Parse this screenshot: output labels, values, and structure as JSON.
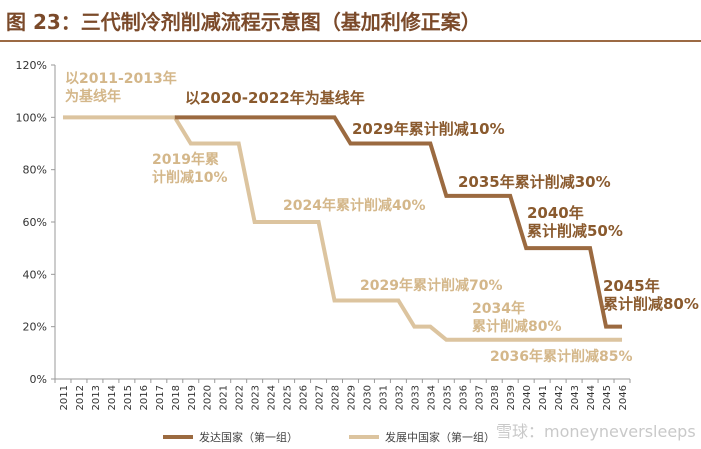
{
  "page": {
    "title": "图 23：三代制冷剂削减流程示意图（基加利修正案）"
  },
  "watermark": "雪球：moneyneversleeps",
  "colors": {
    "developed": "#9b6a40",
    "developing": "#dcc49f",
    "title": "#7b4a2a",
    "axis": "#9a9a9a"
  },
  "chart_data": {
    "type": "line",
    "title": "图 23：三代制冷剂削减流程示意图（基加利修正案）",
    "x": [
      2011,
      2012,
      2013,
      2014,
      2015,
      2016,
      2017,
      2018,
      2019,
      2020,
      2021,
      2022,
      2023,
      2024,
      2025,
      2026,
      2027,
      2028,
      2029,
      2030,
      2031,
      2032,
      2033,
      2034,
      2035,
      2036,
      2037,
      2038,
      2039,
      2040,
      2041,
      2042,
      2043,
      2044,
      2045,
      2046
    ],
    "x_tick_labels": [
      "2011",
      "2012",
      "2013",
      "2014",
      "2015",
      "2016",
      "2017",
      "2018",
      "2019",
      "2020",
      "2021",
      "2022",
      "2023",
      "2024",
      "2025",
      "2026",
      "2027",
      "2028",
      "2029",
      "2030",
      "2031",
      "2032",
      "2033",
      "2034",
      "2035",
      "2036",
      "2037",
      "2038",
      "2039",
      "2040",
      "2041",
      "2042",
      "2043",
      "2044",
      "2045",
      "2046"
    ],
    "y_tick_labels": [
      "0%",
      "20%",
      "40%",
      "60%",
      "80%",
      "100%",
      "120%"
    ],
    "ylim": [
      0,
      120
    ],
    "grid": false,
    "legend_position": "bottom",
    "series": [
      {
        "name": "发展中国家（第一组）",
        "color": "#dcc49f",
        "points": [
          [
            2011,
            100
          ],
          [
            2018,
            100
          ],
          [
            2019,
            90
          ],
          [
            2022,
            90
          ],
          [
            2023,
            60
          ],
          [
            2027,
            60
          ],
          [
            2028,
            30
          ],
          [
            2032,
            30
          ],
          [
            2033,
            20
          ],
          [
            2034,
            20
          ],
          [
            2035,
            15
          ],
          [
            2046,
            15
          ]
        ]
      },
      {
        "name": "发达国家（第一组）",
        "color": "#9b6a40",
        "points": [
          [
            2018,
            100
          ],
          [
            2028,
            100
          ],
          [
            2029,
            90
          ],
          [
            2034,
            90
          ],
          [
            2035,
            70
          ],
          [
            2039,
            70
          ],
          [
            2040,
            50
          ],
          [
            2044,
            50
          ],
          [
            2045,
            20
          ],
          [
            2046,
            20
          ]
        ]
      }
    ],
    "annotations": [
      {
        "series": "developing",
        "lines": [
          "以2011-2013年",
          "为基线年"
        ]
      },
      {
        "series": "developing",
        "lines": [
          "2019年累",
          "计削减10%"
        ]
      },
      {
        "series": "developing",
        "lines": [
          "2024年累计削减40%"
        ]
      },
      {
        "series": "developing",
        "lines": [
          "2029年累计削减70%"
        ]
      },
      {
        "series": "developing",
        "lines": [
          "2034年",
          "累计削减80%"
        ]
      },
      {
        "series": "developing",
        "lines": [
          "2036年累计削减85%"
        ]
      },
      {
        "series": "developed",
        "lines": [
          "以2020-2022年为基线年"
        ]
      },
      {
        "series": "developed",
        "lines": [
          "2029年累计削减10%"
        ]
      },
      {
        "series": "developed",
        "lines": [
          "2035年累计削减30%"
        ]
      },
      {
        "series": "developed",
        "lines": [
          "2040年",
          "累计削减50%"
        ]
      },
      {
        "series": "developed",
        "lines": [
          "2045年",
          "累计削减80%"
        ]
      }
    ],
    "legend": [
      {
        "label": "发达国家（第一组）",
        "series": "developed"
      },
      {
        "label": "发展中国家（第一组）",
        "series": "developing"
      }
    ]
  }
}
